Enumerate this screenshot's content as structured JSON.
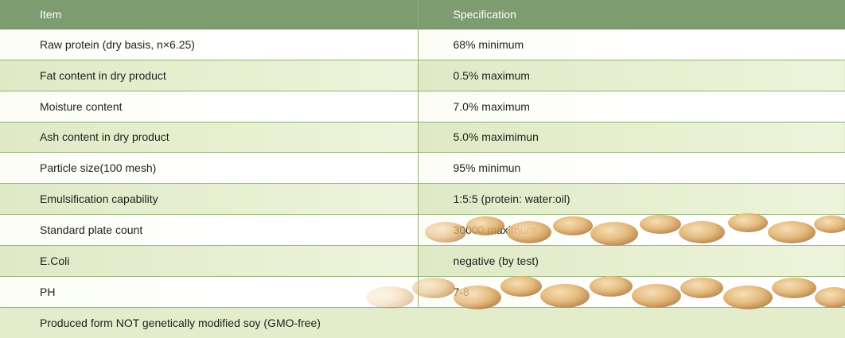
{
  "table": {
    "headers": {
      "item": "Item",
      "specification": "Specification"
    },
    "rows": [
      {
        "item": "Raw protein (dry basis, n×6.25)",
        "spec": "68% minimum"
      },
      {
        "item": "Fat content in dry product",
        "spec": "0.5% maximum"
      },
      {
        "item": "Moisture content",
        "spec": "7.0% maximum"
      },
      {
        "item": "Ash content in dry product",
        "spec": "5.0% maximimun"
      },
      {
        "item": "Particle size(100 mesh)",
        "spec": "95% minimun"
      },
      {
        "item": "Emulsification capability",
        "spec": "1:5:5 (protein: water:oil)"
      },
      {
        "item": "Standard plate count",
        "spec": "30000 maximum"
      },
      {
        "item": "E.Coli",
        "spec": "negative (by test)"
      },
      {
        "item": "PH",
        "spec": "7-8"
      }
    ],
    "note": "Produced form NOT genetically modified soy (GMO-free)"
  },
  "colors": {
    "header_bg": "#7d9c70",
    "header_text": "#ffffff",
    "row_tint": "#dfe9c6",
    "border": "#8fb06f"
  },
  "decoration": {
    "icon": "soybeans-image"
  }
}
